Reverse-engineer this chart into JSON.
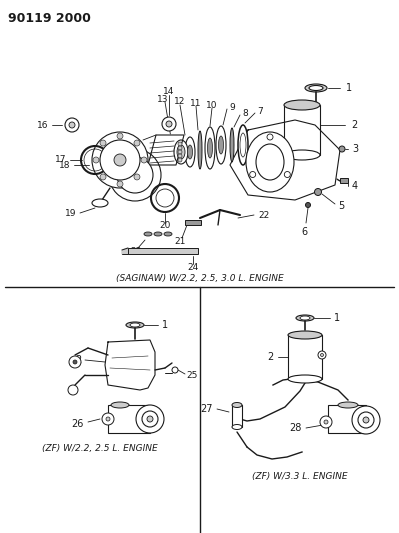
{
  "title_code": "90119 2000",
  "bg_color": "#ffffff",
  "top_label": "(SAGINAW) W/2.2, 2.5, 3.0 L. ENGINE",
  "bottom_left_label": "(ZF) W/2.2, 2.5 L. ENGINE",
  "bottom_right_label": "(ZF) W/3.3 L. ENGINE",
  "text_color": "#1a1a1a",
  "line_color": "#1a1a1a",
  "gray_fill": "#cccccc",
  "dark_fill": "#555555",
  "mid_fill": "#999999"
}
